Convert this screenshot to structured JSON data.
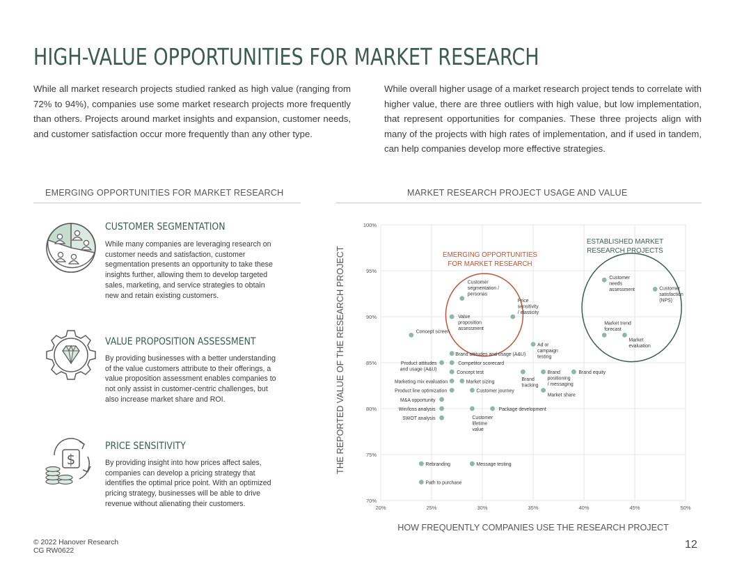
{
  "page": {
    "title": "HIGH-VALUE OPPORTUNITIES FOR MARKET RESEARCH",
    "intro_left": "While all market research projects studied ranked as high value (ranging from 72% to 94%), companies use some market research projects more frequently than others. Projects around market insights and expansion, customer needs, and customer satisfaction occur more frequently than any other type.",
    "intro_right": "While overall higher usage of a market research project tends to correlate with higher value, there are three outliers with high value, but low implementation, that represent opportunities for companies. These three projects align with many of the projects with high rates of implementation, and if used in tandem, can help companies develop more effective strategies."
  },
  "left_section": {
    "heading": "EMERGING OPPORTUNITIES FOR MARKET RESEARCH",
    "items": [
      {
        "icon": "customer-segments-pie-icon",
        "title": "CUSTOMER SEGMENTATION",
        "text": "While many companies are leveraging research on customer needs and satisfaction, customer segmentation presents an opportunity to take these insights further, allowing them to develop targeted sales, marketing, and service strategies to obtain new and retain existing customers."
      },
      {
        "icon": "diamond-gear-icon",
        "title": "VALUE PROPOSITION ASSESSMENT",
        "text": "By providing businesses with a better understanding of the value customers attribute to their offerings, a value proposition assessment enables companies to not only assist in customer-centric challenges, but also increase market share and ROI."
      },
      {
        "icon": "dollar-cycle-coins-icon",
        "title": "PRICE SENSITIVITY",
        "text": "By providing insight into how prices affect sales, companies can develop a pricing strategy that identifies the optimal price point. With an optimized pricing strategy, businesses will be able to drive revenue without alienating their customers."
      }
    ]
  },
  "chart_section": {
    "heading": "MARKET RESEARCH PROJECT USAGE AND VALUE"
  },
  "colors": {
    "title": "#3d5c50",
    "point": "#8fb8a4",
    "emerging": "#c0533a",
    "established": "#3d5c50",
    "grid": "#e6e6e6",
    "divider": "#c8c8c8"
  },
  "chart_data": {
    "type": "scatter",
    "title": "",
    "xlabel": "HOW FREQUENTLY COMPANIES USE THE RESEARCH PROJECT",
    "ylabel": "THE REPORTED VALUE OF THE RESEARCH PROJECT",
    "xlim": [
      20,
      50
    ],
    "ylim": [
      70,
      100
    ],
    "xticks": [
      "20%",
      "25%",
      "30%",
      "35%",
      "40%",
      "45%",
      "50%"
    ],
    "yticks": [
      "70%",
      "75%",
      "80%",
      "85%",
      "90%",
      "95%",
      "100%"
    ],
    "grid": true,
    "points": [
      {
        "label": "Concept screen",
        "x": 23,
        "y": 88
      },
      {
        "label": "Customer segmentation / personas",
        "x": 28,
        "y": 92
      },
      {
        "label": "Value proposition assessment",
        "x": 27,
        "y": 90
      },
      {
        "label": "Price sensitivity / elasticity",
        "x": 33,
        "y": 90
      },
      {
        "label": "Ad or campaign testing",
        "x": 35,
        "y": 87
      },
      {
        "label": "Brand attitudes and usage (A&U)",
        "x": 27,
        "y": 86
      },
      {
        "label": "Product attitudes and usage (A&U)",
        "x": 26,
        "y": 85
      },
      {
        "label": "Competitor scorecard",
        "x": 27,
        "y": 85
      },
      {
        "label": "Concept test",
        "x": 27,
        "y": 84
      },
      {
        "label": "Brand tracking",
        "x": 34,
        "y": 84
      },
      {
        "label": "Brand positioning / messaging",
        "x": 36,
        "y": 84
      },
      {
        "label": "Brand equity",
        "x": 39,
        "y": 84
      },
      {
        "label": "Marketing mix evaluation",
        "x": 27,
        "y": 83
      },
      {
        "label": "Market sizing",
        "x": 28,
        "y": 83
      },
      {
        "label": "Product line optimization",
        "x": 27,
        "y": 82
      },
      {
        "label": "Customer journey",
        "x": 29,
        "y": 82
      },
      {
        "label": "Market share",
        "x": 36,
        "y": 82
      },
      {
        "label": "M&A opportunity",
        "x": 26,
        "y": 81
      },
      {
        "label": "Win/loss analysis",
        "x": 26,
        "y": 80
      },
      {
        "label": "Customer lifetime value",
        "x": 29,
        "y": 80
      },
      {
        "label": "Package development",
        "x": 31,
        "y": 80
      },
      {
        "label": "SWOT analysis",
        "x": 26,
        "y": 79
      },
      {
        "label": "Rebranding",
        "x": 24,
        "y": 74
      },
      {
        "label": "Message testing",
        "x": 29,
        "y": 74
      },
      {
        "label": "Path to purchase",
        "x": 24,
        "y": 72
      },
      {
        "label": "Customer needs assessment",
        "x": 42,
        "y": 94
      },
      {
        "label": "Customer satisfaction (NPS)",
        "x": 47,
        "y": 93
      },
      {
        "label": "Market trend forecast",
        "x": 42,
        "y": 88
      },
      {
        "label": "Market evaluation",
        "x": 44,
        "y": 88
      }
    ],
    "annotations": [
      {
        "label": "EMERGING OPPORTUNITIES FOR MARKET RESEARCH",
        "color": "emerging",
        "center": [
          30.2,
          90.2
        ],
        "radius_x": 3.8,
        "radius_y": 4.5
      },
      {
        "label": "ESTABLISHED MARKET RESEARCH PROJECTS",
        "color": "established",
        "center": [
          44.7,
          91
        ],
        "radius_x": 4.9,
        "radius_y": 5.9
      }
    ]
  },
  "footer": {
    "copyright": "© 2022 Hanover Research",
    "code": "CG RW0622",
    "page_number": "12"
  }
}
